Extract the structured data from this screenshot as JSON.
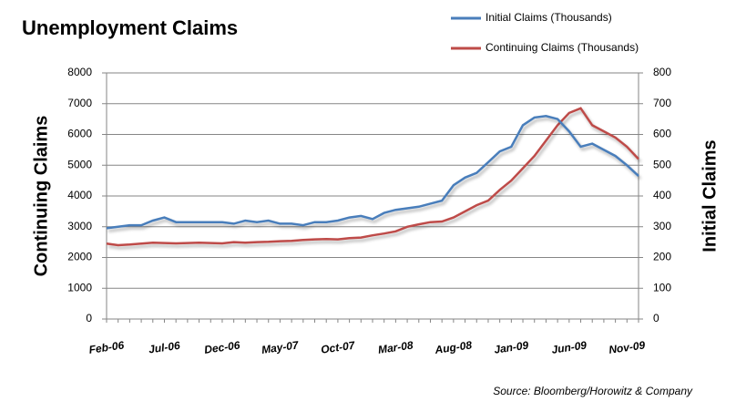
{
  "chart_data": {
    "type": "line",
    "title": "Unemployment Claims",
    "y_label": "Continuing Claims",
    "y2_label": "Initial Claims",
    "source": "Source: Bloomberg/Horowitz & Company",
    "categories": [
      "Feb-06",
      null,
      null,
      null,
      null,
      "Jul-06",
      null,
      null,
      null,
      null,
      "Dec-06",
      null,
      null,
      null,
      null,
      "May-07",
      null,
      null,
      null,
      null,
      "Oct-07",
      null,
      null,
      null,
      null,
      "Mar-08",
      null,
      null,
      null,
      null,
      "Aug-08",
      null,
      null,
      null,
      null,
      "Jan-09",
      null,
      null,
      null,
      null,
      "Jun-09",
      null,
      null,
      null,
      null,
      "Nov-09",
      null
    ],
    "series": [
      {
        "name": "Initial Claims (Thousands)",
        "color": "#4a7ebb",
        "axis": "y2",
        "values": [
          295,
          300,
          305,
          305,
          320,
          330,
          315,
          315,
          315,
          315,
          315,
          310,
          320,
          315,
          320,
          310,
          310,
          305,
          315,
          315,
          320,
          330,
          335,
          325,
          345,
          355,
          360,
          365,
          375,
          385,
          435,
          460,
          475,
          510,
          545,
          560,
          630,
          655,
          660,
          650,
          610,
          560,
          570,
          550,
          530,
          500,
          465
        ]
      },
      {
        "name": "Continuing Claims (Thousands)",
        "color": "#be4b48",
        "values": [
          2450,
          2400,
          2420,
          2450,
          2480,
          2470,
          2460,
          2470,
          2480,
          2470,
          2460,
          2500,
          2480,
          2500,
          2510,
          2530,
          2540,
          2570,
          2590,
          2600,
          2590,
          2630,
          2650,
          2720,
          2780,
          2850,
          3000,
          3080,
          3150,
          3170,
          3300,
          3500,
          3700,
          3850,
          4200,
          4500,
          4900,
          5300,
          5800,
          6300,
          6700,
          6850,
          6300,
          6100,
          5900,
          5600,
          5200
        ]
      }
    ],
    "ylim": [
      0,
      8000
    ],
    "yticks": [
      0,
      1000,
      2000,
      3000,
      4000,
      5000,
      6000,
      7000,
      8000
    ],
    "y2lim": [
      0,
      800
    ],
    "y2ticks": [
      0,
      100,
      200,
      300,
      400,
      500,
      600,
      700,
      800
    ],
    "grid": true
  }
}
